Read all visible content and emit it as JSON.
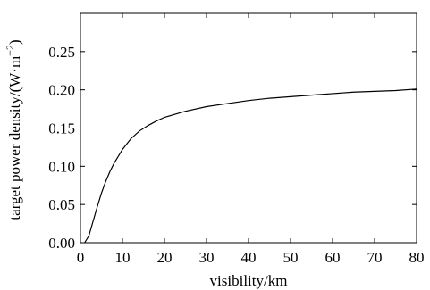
{
  "chart_data": {
    "type": "line",
    "title": "",
    "xlabel": "visibility/km",
    "ylabel_main": "target power density/(W·m",
    "ylabel_sup": "−2",
    "ylabel_close": ")",
    "xlim": [
      0,
      80
    ],
    "ylim": [
      0,
      0.3
    ],
    "grid": false,
    "x_ticks": [
      0,
      10,
      20,
      30,
      40,
      50,
      60,
      70,
      80
    ],
    "x_tick_labels": [
      "0",
      "10",
      "20",
      "30",
      "40",
      "50",
      "60",
      "70",
      "80"
    ],
    "y_ticks": [
      0,
      0.05,
      0.1,
      0.15,
      0.2,
      0.25
    ],
    "y_tick_labels": [
      "0.00",
      "0.05",
      "0.10",
      "0.15",
      "0.20",
      "0.25"
    ],
    "series": [
      {
        "color": "#000000",
        "x": [
          1,
          2,
          3,
          4,
          5,
          6,
          7,
          8,
          10,
          12,
          14,
          16,
          18,
          20,
          25,
          30,
          35,
          40,
          45,
          50,
          55,
          60,
          65,
          70,
          75,
          80
        ],
        "y": [
          0.0,
          0.009,
          0.028,
          0.047,
          0.065,
          0.08,
          0.093,
          0.104,
          0.122,
          0.136,
          0.146,
          0.153,
          0.159,
          0.164,
          0.172,
          0.178,
          0.182,
          0.186,
          0.189,
          0.191,
          0.193,
          0.195,
          0.197,
          0.198,
          0.199,
          0.201
        ]
      }
    ]
  }
}
